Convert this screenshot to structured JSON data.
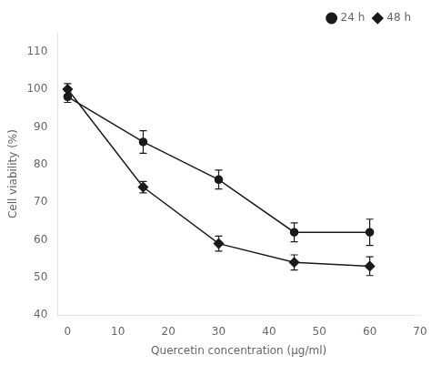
{
  "chart_data": {
    "type": "line",
    "x": [
      0,
      15,
      30,
      45,
      60
    ],
    "series": [
      {
        "name": "24 h",
        "color": "#1a1a1a",
        "marker": "circle",
        "values": [
          98,
          86,
          76,
          62,
          62
        ],
        "yerr": [
          1.5,
          3.0,
          2.5,
          2.5,
          3.5
        ]
      },
      {
        "name": "48 h",
        "color": "#1a1a1a",
        "marker": "diamond",
        "values": [
          100,
          74,
          59,
          54,
          53
        ],
        "yerr": [
          1.5,
          1.5,
          2.0,
          2.0,
          2.5
        ]
      }
    ],
    "xlabel": "Quercetin concentration (μg/ml)",
    "ylabel": "Cell viability (%)",
    "xlim": [
      -2,
      70
    ],
    "ylim": [
      40,
      115
    ],
    "xticks": [
      0,
      10,
      20,
      30,
      40,
      50,
      60,
      70
    ],
    "yticks": [
      40,
      50,
      60,
      70,
      80,
      90,
      100,
      110
    ],
    "grid": false,
    "legend": "upper right"
  }
}
